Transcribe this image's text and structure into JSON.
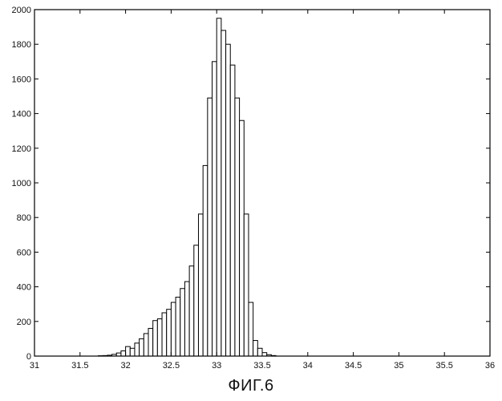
{
  "figure": {
    "caption": "ФИГ.6"
  },
  "chart_data": {
    "type": "bar",
    "title": "",
    "xlabel": "",
    "ylabel": "",
    "xlim": [
      31,
      36
    ],
    "ylim": [
      0,
      2000
    ],
    "grid": false,
    "legend": "none",
    "x_ticks": [
      31,
      31.5,
      32,
      32.5,
      33,
      33.5,
      34,
      34.5,
      35,
      35.5,
      36
    ],
    "x_tick_labels": [
      "31",
      "31.5",
      "32",
      "32.5",
      "33",
      "33.5",
      "34",
      "34.5",
      "35",
      "35.5",
      "36"
    ],
    "y_ticks": [
      0,
      200,
      400,
      600,
      800,
      1000,
      1200,
      1400,
      1600,
      1800,
      2000
    ],
    "y_tick_labels": [
      "0",
      "200",
      "400",
      "600",
      "800",
      "1000",
      "1200",
      "1400",
      "1600",
      "1800",
      "2000"
    ],
    "bin_width": 0.05,
    "bar_color": "#ffffff",
    "edge_color": "#000000",
    "x": [
      31.725,
      31.775,
      31.825,
      31.875,
      31.925,
      31.975,
      32.025,
      32.075,
      32.125,
      32.175,
      32.225,
      32.275,
      32.325,
      32.375,
      32.425,
      32.475,
      32.525,
      32.575,
      32.625,
      32.675,
      32.725,
      32.775,
      32.825,
      32.875,
      32.925,
      32.975,
      33.025,
      33.075,
      33.125,
      33.175,
      33.225,
      33.275,
      33.325,
      33.375,
      33.425,
      33.475,
      33.525,
      33.575,
      33.625
    ],
    "values": [
      2,
      3,
      5,
      10,
      18,
      30,
      55,
      45,
      75,
      100,
      130,
      160,
      205,
      215,
      250,
      270,
      310,
      340,
      390,
      430,
      520,
      640,
      820,
      1100,
      1490,
      1700,
      1950,
      1880,
      1800,
      1680,
      1490,
      1360,
      820,
      310,
      90,
      45,
      20,
      8,
      3
    ]
  }
}
